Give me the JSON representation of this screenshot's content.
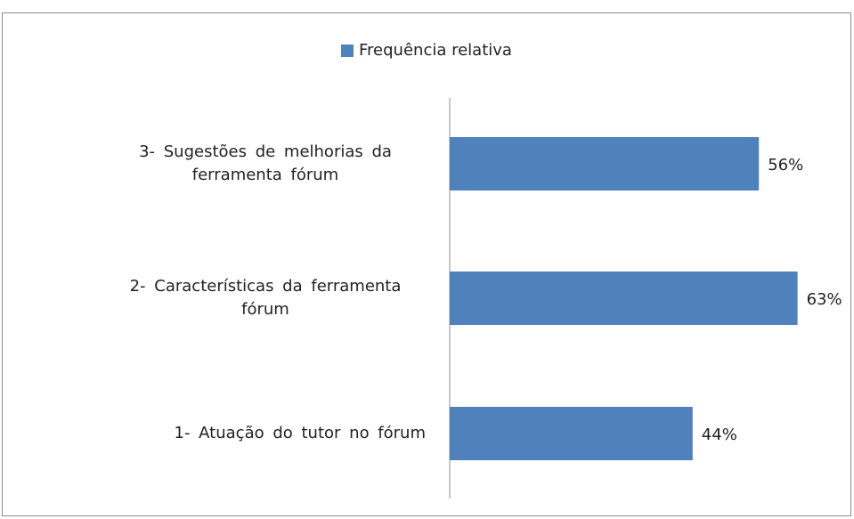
{
  "chart_data": {
    "type": "bar",
    "orientation": "horizontal",
    "categories": [
      "1- Atuação do tutor no fórum",
      "2- Características da ferramenta fórum",
      "3- Sugestões de melhorias da ferramenta fórum"
    ],
    "series": [
      {
        "name": "Frequência relativa",
        "color": "#4f81bd",
        "values": [
          44,
          63,
          56
        ],
        "value_labels": [
          "44%",
          "63%",
          "56%"
        ]
      }
    ],
    "legend": "top"
  }
}
